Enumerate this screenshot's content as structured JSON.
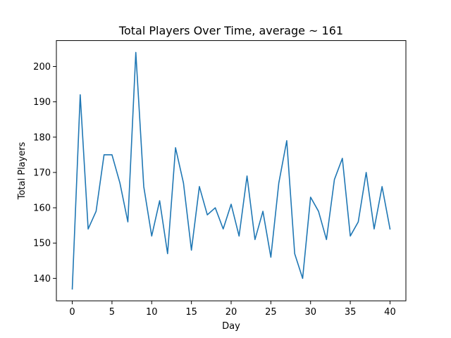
{
  "chart_data": {
    "type": "line",
    "title": "Total Players Over Time, average ~ 161",
    "xlabel": "Day",
    "ylabel": "Total Players",
    "xlim": [
      -2,
      42
    ],
    "ylim": [
      133.65,
      207.35
    ],
    "xticks": [
      0,
      5,
      10,
      15,
      20,
      25,
      30,
      35,
      40
    ],
    "yticks": [
      140,
      150,
      160,
      170,
      180,
      190,
      200
    ],
    "grid": false,
    "series": [
      {
        "color": "#1f77b4",
        "x": [
          0,
          1,
          2,
          3,
          4,
          5,
          6,
          7,
          8,
          9,
          10,
          11,
          12,
          13,
          14,
          15,
          16,
          17,
          18,
          19,
          20,
          21,
          22,
          23,
          24,
          25,
          26,
          27,
          28,
          29,
          30,
          31,
          32,
          33,
          34,
          35,
          36,
          37,
          38,
          39,
          40
        ],
        "values": [
          137,
          192,
          154,
          159,
          175,
          175,
          167,
          156,
          204,
          166,
          152,
          162,
          147,
          177,
          167,
          148,
          166,
          158,
          160,
          154,
          161,
          152,
          169,
          151,
          159,
          146,
          167,
          179,
          147,
          140,
          163,
          159,
          151,
          168,
          174,
          152,
          156,
          170,
          154,
          166,
          154
        ]
      }
    ]
  }
}
